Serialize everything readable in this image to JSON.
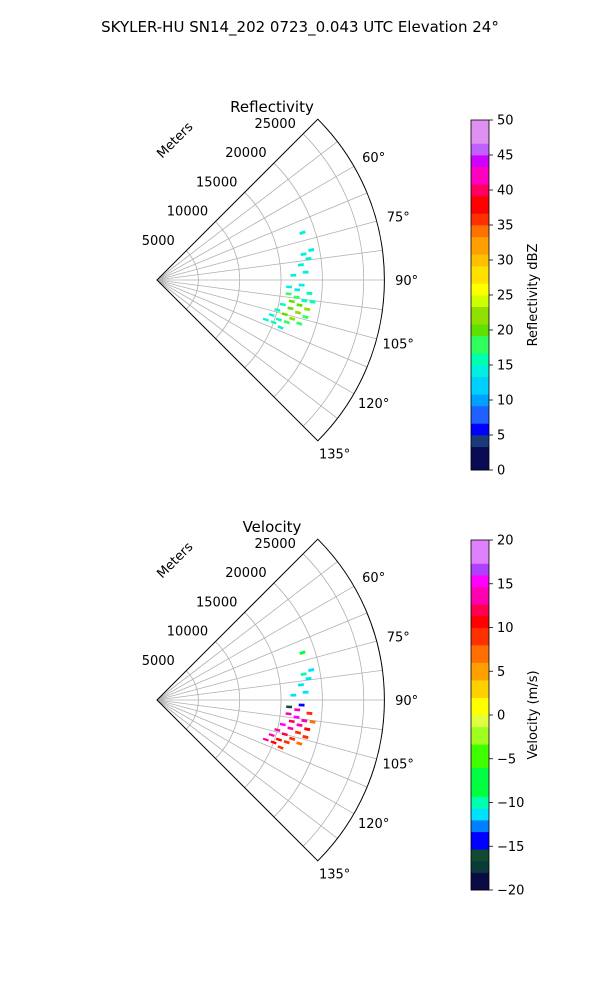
{
  "figure": {
    "title": "SKYLER-HU  SN14_202  0723_0.043 UTC Elevation 24°"
  },
  "chart_data": [
    {
      "type": "heatmap",
      "title": "Reflectivity",
      "coordinate_system": "polar-sector",
      "theta_range_deg": [
        45,
        135
      ],
      "r_range_m": [
        0,
        27500
      ],
      "radial_label": "Meters",
      "r_ticks": [
        5000,
        10000,
        15000,
        20000,
        25000
      ],
      "theta_ticks": [
        60,
        75,
        90,
        105,
        120,
        135
      ],
      "theta_tick_labels": [
        "60°",
        "75°",
        "90°",
        "105°",
        "120°",
        "135°"
      ],
      "grid": true,
      "colorbar": {
        "label": "Reflectivity dBZ",
        "min": 0,
        "max": 50,
        "ticks": [
          0,
          5,
          10,
          15,
          20,
          25,
          30,
          35,
          40,
          45,
          50
        ],
        "tick_labels": [
          "0",
          "5",
          "10",
          "15",
          "20",
          "25",
          "30",
          "35",
          "40",
          "45",
          "50"
        ]
      },
      "cells": [
        {
          "r": 16000,
          "theta": 96,
          "value": 17
        },
        {
          "r": 17000,
          "theta": 97,
          "value": 18
        },
        {
          "r": 18000,
          "theta": 98,
          "value": 16
        },
        {
          "r": 16500,
          "theta": 99,
          "value": 19
        },
        {
          "r": 17500,
          "theta": 100,
          "value": 20
        },
        {
          "r": 18500,
          "theta": 101,
          "value": 21
        },
        {
          "r": 15500,
          "theta": 101,
          "value": 16
        },
        {
          "r": 16500,
          "theta": 102,
          "value": 19
        },
        {
          "r": 17500,
          "theta": 103,
          "value": 22
        },
        {
          "r": 18500,
          "theta": 104,
          "value": 18
        },
        {
          "r": 15000,
          "theta": 104,
          "value": 15
        },
        {
          "r": 16000,
          "theta": 105,
          "value": 20
        },
        {
          "r": 17000,
          "theta": 106,
          "value": 21
        },
        {
          "r": 18000,
          "theta": 107,
          "value": 17
        },
        {
          "r": 14500,
          "theta": 107,
          "value": 14
        },
        {
          "r": 15500,
          "theta": 108,
          "value": 16
        },
        {
          "r": 16500,
          "theta": 108,
          "value": 18
        },
        {
          "r": 14000,
          "theta": 110,
          "value": 14
        },
        {
          "r": 15000,
          "theta": 110,
          "value": 15
        },
        {
          "r": 16000,
          "theta": 111,
          "value": 14
        },
        {
          "r": 18500,
          "theta": 95,
          "value": 15
        },
        {
          "r": 19000,
          "theta": 98,
          "value": 16
        },
        {
          "r": 17000,
          "theta": 94,
          "value": 14
        },
        {
          "r": 16000,
          "theta": 93,
          "value": 14
        },
        {
          "r": 17500,
          "theta": 92,
          "value": 14
        },
        {
          "r": 16500,
          "theta": 88,
          "value": 14
        },
        {
          "r": 18000,
          "theta": 87,
          "value": 14
        },
        {
          "r": 17500,
          "theta": 84,
          "value": 14
        },
        {
          "r": 18500,
          "theta": 82,
          "value": 14
        },
        {
          "r": 18000,
          "theta": 80,
          "value": 13
        },
        {
          "r": 19000,
          "theta": 79,
          "value": 14
        },
        {
          "r": 18500,
          "theta": 72,
          "value": 13
        }
      ]
    },
    {
      "type": "heatmap",
      "title": "Velocity",
      "coordinate_system": "polar-sector",
      "theta_range_deg": [
        45,
        135
      ],
      "r_range_m": [
        0,
        27500
      ],
      "radial_label": "Meters",
      "r_ticks": [
        5000,
        10000,
        15000,
        20000,
        25000
      ],
      "theta_ticks": [
        60,
        75,
        90,
        105,
        120,
        135
      ],
      "theta_tick_labels": [
        "60°",
        "75°",
        "90°",
        "105°",
        "120°",
        "135°"
      ],
      "grid": true,
      "colorbar": {
        "label": "Velocity (m/s)",
        "min": -20,
        "max": 20,
        "ticks": [
          -20,
          -15,
          -10,
          -5,
          0,
          5,
          10,
          15,
          20
        ],
        "tick_labels": [
          "−20",
          "−15",
          "−10",
          "−5",
          "0",
          "5",
          "10",
          "15",
          "20"
        ]
      },
      "cells": [
        {
          "r": 16000,
          "theta": 96,
          "value": 13
        },
        {
          "r": 17000,
          "theta": 97,
          "value": 15
        },
        {
          "r": 18000,
          "theta": 98,
          "value": 14
        },
        {
          "r": 16500,
          "theta": 99,
          "value": 12
        },
        {
          "r": 17500,
          "theta": 100,
          "value": 13
        },
        {
          "r": 18500,
          "theta": 101,
          "value": 10
        },
        {
          "r": 15500,
          "theta": 101,
          "value": 15
        },
        {
          "r": 16500,
          "theta": 102,
          "value": 13
        },
        {
          "r": 17500,
          "theta": 103,
          "value": 9
        },
        {
          "r": 18500,
          "theta": 104,
          "value": 8
        },
        {
          "r": 15000,
          "theta": 104,
          "value": 14
        },
        {
          "r": 16000,
          "theta": 105,
          "value": 12
        },
        {
          "r": 17000,
          "theta": 106,
          "value": 9
        },
        {
          "r": 18000,
          "theta": 107,
          "value": 7
        },
        {
          "r": 14500,
          "theta": 107,
          "value": 13
        },
        {
          "r": 15500,
          "theta": 108,
          "value": 11
        },
        {
          "r": 16500,
          "theta": 108,
          "value": 8
        },
        {
          "r": 14000,
          "theta": 110,
          "value": 13
        },
        {
          "r": 15000,
          "theta": 110,
          "value": 11
        },
        {
          "r": 16000,
          "theta": 111,
          "value": 9
        },
        {
          "r": 18500,
          "theta": 95,
          "value": 9
        },
        {
          "r": 19000,
          "theta": 98,
          "value": 7
        },
        {
          "r": 17000,
          "theta": 94,
          "value": 14
        },
        {
          "r": 16000,
          "theta": 93,
          "value": -16
        },
        {
          "r": 17500,
          "theta": 92,
          "value": -14
        },
        {
          "r": 16500,
          "theta": 88,
          "value": -12
        },
        {
          "r": 18000,
          "theta": 87,
          "value": -11
        },
        {
          "r": 17500,
          "theta": 84,
          "value": -11
        },
        {
          "r": 18500,
          "theta": 82,
          "value": -12
        },
        {
          "r": 18000,
          "theta": 80,
          "value": -10
        },
        {
          "r": 19000,
          "theta": 79,
          "value": -11
        },
        {
          "r": 18500,
          "theta": 72,
          "value": -7
        }
      ]
    }
  ]
}
